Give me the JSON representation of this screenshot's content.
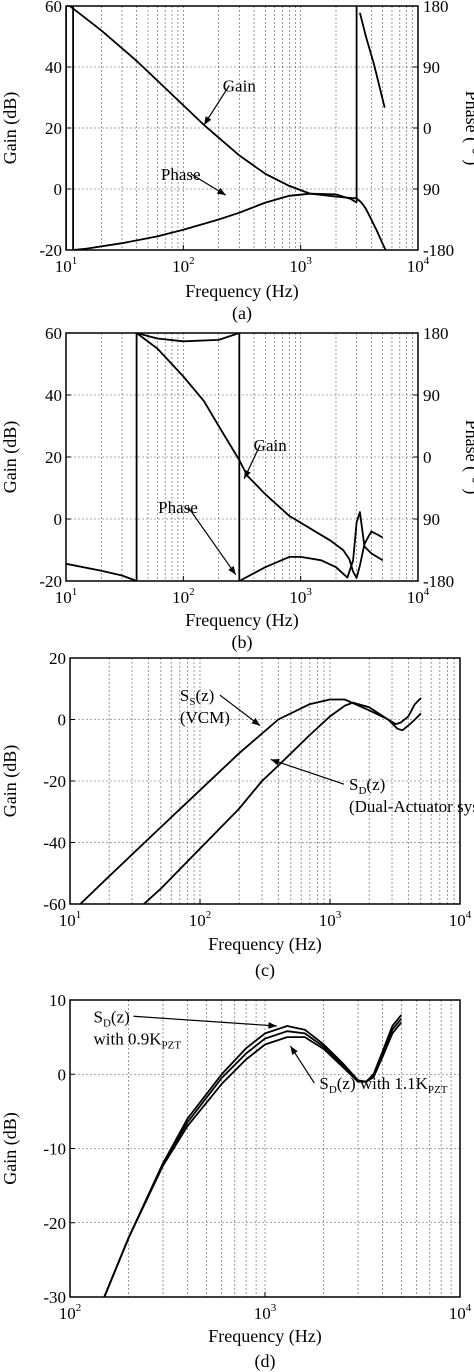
{
  "chart_data": [
    {
      "type": "line",
      "caption": "(a)",
      "xlabel": "Frequency (Hz)",
      "ylabel": "Gain (dB)",
      "y2label": "Phase ( ° )",
      "xscale": "log",
      "xlim": [
        10,
        10000
      ],
      "ylim": [
        -20,
        60
      ],
      "y2lim": [
        -180,
        180
      ],
      "grid": true,
      "x_ticks": [
        {
          "v": 10,
          "base": "10",
          "exp": "1"
        },
        {
          "v": 100,
          "base": "10",
          "exp": "2"
        },
        {
          "v": 1000,
          "base": "10",
          "exp": "3"
        },
        {
          "v": 10000,
          "base": "10",
          "exp": "4"
        }
      ],
      "y_ticks": [
        60,
        40,
        20,
        0,
        -20
      ],
      "y2_ticks": [
        {
          "v": 180,
          "label": "180"
        },
        {
          "v": 90,
          "label": "90"
        },
        {
          "v": 0,
          "label": "0"
        },
        {
          "v": -90,
          "label": "90"
        },
        {
          "v": -180,
          "label": "-180"
        }
      ],
      "annotations": [
        {
          "text": "Gain",
          "x": 300,
          "y": 32,
          "ax": 150,
          "ay": 21
        },
        {
          "text": "Phase",
          "x": 95,
          "y": 3,
          "ax": 230,
          "ay": -2
        }
      ],
      "series": [
        {
          "axis": "left",
          "x": [
            10,
            20,
            40,
            80,
            150,
            300,
            500,
            800,
            1200,
            2000,
            2800,
            3000
          ],
          "y": [
            61,
            52,
            42,
            31,
            21,
            11,
            5,
            1,
            -1.5,
            -2.5,
            -3,
            -3
          ]
        },
        {
          "axis": "left",
          "x": [
            3000,
            3300,
            3600,
            4000,
            4500,
            5000,
            5300
          ],
          "y": [
            -3,
            -4.5,
            -6.5,
            -10,
            -14,
            -18,
            -20
          ]
        },
        {
          "axis": "right",
          "x": [
            10,
            10,
            10,
            11.5,
            11.5
          ],
          "y": [
            -180,
            180,
            180,
            180,
            -180
          ]
        },
        {
          "axis": "right",
          "x": [
            11.5,
            15,
            30,
            60,
            100,
            200,
            300,
            500,
            800,
            1200,
            2000,
            2700,
            3000
          ],
          "y": [
            -180,
            -178,
            -170,
            -160,
            -150,
            -135,
            -125,
            -110,
            -100,
            -97,
            -98,
            -105,
            -110
          ]
        },
        {
          "axis": "right",
          "x": [
            3000,
            3000
          ],
          "y": [
            -110,
            180
          ]
        },
        {
          "axis": "right",
          "x": [
            3200,
            3600,
            4200,
            5200
          ],
          "y": [
            170,
            135,
            95,
            30
          ]
        }
      ]
    },
    {
      "type": "line",
      "caption": "(b)",
      "xlabel": "Frequency (Hz)",
      "ylabel": "Gain (dB)",
      "y2label": "Phase ( ° )",
      "xscale": "log",
      "xlim": [
        10,
        10000
      ],
      "ylim": [
        -20,
        60
      ],
      "y2lim": [
        -180,
        180
      ],
      "grid": true,
      "x_ticks": [
        {
          "v": 10,
          "base": "10",
          "exp": "1"
        },
        {
          "v": 100,
          "base": "10",
          "exp": "2"
        },
        {
          "v": 1000,
          "base": "10",
          "exp": "3"
        },
        {
          "v": 10000,
          "base": "10",
          "exp": "4"
        }
      ],
      "y_ticks": [
        60,
        40,
        20,
        0,
        -20
      ],
      "y2_ticks": [
        {
          "v": 180,
          "label": "180"
        },
        {
          "v": 90,
          "label": "90"
        },
        {
          "v": 0,
          "label": "0"
        },
        {
          "v": -90,
          "label": "90"
        },
        {
          "v": -180,
          "label": "-180"
        }
      ],
      "annotations": [
        {
          "text": "Gain",
          "x": 550,
          "y": 22,
          "ax": 330,
          "ay": 13
        },
        {
          "text": "Phase",
          "x": 90,
          "y": 2,
          "ax": 280,
          "ay": -18
        }
      ],
      "series": [
        {
          "axis": "left",
          "x": [
            40,
            60,
            100,
            150,
            200,
            300,
            350,
            500,
            800,
            1200,
            1800,
            2300,
            2600,
            2800,
            3000,
            3200,
            3500,
            4000,
            4500,
            5000
          ],
          "y": [
            60,
            55,
            46,
            38,
            30,
            19,
            14,
            8,
            1,
            -3,
            -7,
            -10,
            -13,
            -17,
            -19,
            -15,
            -8,
            -4,
            -5,
            -6
          ]
        },
        {
          "axis": "right",
          "x": [
            10,
            20,
            30,
            40
          ],
          "y": [
            -155,
            -165,
            -172,
            -180
          ]
        },
        {
          "axis": "right",
          "x": [
            40,
            40
          ],
          "y": [
            -180,
            180
          ]
        },
        {
          "axis": "right",
          "x": [
            40,
            60,
            100,
            200,
            300
          ],
          "y": [
            180,
            172,
            168,
            170,
            180
          ]
        },
        {
          "axis": "right",
          "x": [
            300,
            300
          ],
          "y": [
            180,
            -180
          ]
        },
        {
          "axis": "right",
          "x": [
            300,
            500,
            800,
            1000,
            1500,
            2000,
            2500,
            2800,
            3000,
            3200,
            3500,
            4000,
            5000
          ],
          "y": [
            -180,
            -160,
            -145,
            -145,
            -150,
            -160,
            -175,
            -150,
            -95,
            -80,
            -130,
            -140,
            -150
          ]
        }
      ]
    },
    {
      "type": "line",
      "caption": "(c)",
      "xlabel": "Frequency (Hz)",
      "ylabel": "Gain (dB)",
      "xscale": "log",
      "xlim": [
        10,
        10000
      ],
      "ylim": [
        -60,
        20
      ],
      "grid": true,
      "x_ticks": [
        {
          "v": 10,
          "base": "10",
          "exp": "1"
        },
        {
          "v": 100,
          "base": "10",
          "exp": "2"
        },
        {
          "v": 1000,
          "base": "10",
          "exp": "3"
        },
        {
          "v": 10000,
          "base": "10",
          "exp": "4"
        }
      ],
      "y_ticks": [
        20,
        0,
        -20,
        -40,
        -60
      ],
      "annotations": [
        {
          "base": "S",
          "sub": "S",
          "suffix": "(z)",
          "line2": "(VCM)",
          "x": 70,
          "y": 6,
          "ax": 290,
          "ay": -2
        },
        {
          "base": "S",
          "sub": "D",
          "suffix": "(z)",
          "line2": "(Dual-Actuator system)",
          "x": 1400,
          "y": -23,
          "ax": 350,
          "ay": -13
        }
      ],
      "series": [
        {
          "name": "Ss(z)",
          "x": [
            12,
            20,
            50,
            100,
            200,
            400,
            700,
            1000,
            1300,
            2000,
            2800,
            3200,
            3500,
            4000,
            4500,
            5000
          ],
          "y": [
            -60,
            -51,
            -35,
            -23,
            -11,
            0,
            5,
            6.5,
            6.5,
            3,
            0,
            -1.5,
            -1,
            1,
            5,
            7
          ]
        },
        {
          "name": "SD(z)",
          "x": [
            37,
            50,
            100,
            200,
            300,
            400,
            700,
            1000,
            1300,
            1500,
            2000,
            2800,
            3300,
            3600,
            4000,
            4500,
            5000
          ],
          "y": [
            -60,
            -55,
            -42,
            -29,
            -20,
            -15,
            -5,
            1,
            4.5,
            5.5,
            4,
            0,
            -3,
            -3.5,
            -2,
            0,
            2
          ]
        }
      ]
    },
    {
      "type": "line",
      "caption": "(d)",
      "xlabel": "Frequency (Hz)",
      "ylabel": "Gain (dB)",
      "xscale": "log",
      "xlim": [
        100,
        10000
      ],
      "ylim": [
        -30,
        10
      ],
      "grid": true,
      "x_ticks": [
        {
          "v": 100,
          "base": "10",
          "exp": "2"
        },
        {
          "v": 1000,
          "base": "10",
          "exp": "3"
        },
        {
          "v": 10000,
          "base": "10",
          "exp": "4"
        }
      ],
      "y_ticks": [
        10,
        0,
        -10,
        -20,
        -30
      ],
      "annotations": [
        {
          "base": "S",
          "sub": "D",
          "suffix": "(z)",
          "line2_base": "with 0.9K",
          "line2_sub": "PZT",
          "x": 132,
          "y": 7,
          "ax": 1150,
          "ay": 6.5
        },
        {
          "base": "S",
          "sub": "D",
          "suffix": "(z) with 1.1K",
          "sub2": "PZT",
          "x": 1900,
          "y": -2,
          "ax": 1350,
          "ay": 3.8
        }
      ],
      "series": [
        {
          "name": "SD(z) with 0.9KPZT",
          "x": [
            150,
            200,
            300,
            400,
            600,
            800,
            1000,
            1300,
            1600,
            2000,
            2500,
            3000,
            3300,
            3600,
            4000,
            4500,
            5000
          ],
          "y": [
            -30,
            -22,
            -12,
            -6,
            0,
            3.5,
            5.5,
            6.5,
            6,
            4,
            1.5,
            -0.8,
            -1,
            0,
            3,
            6.5,
            8
          ]
        },
        {
          "name": "SD(z)",
          "x": [
            150,
            200,
            300,
            400,
            600,
            800,
            1000,
            1300,
            1600,
            2000,
            2500,
            3000,
            3300,
            3600,
            4000,
            4500,
            5000
          ],
          "y": [
            -30,
            -22,
            -12,
            -6.5,
            -0.5,
            2.8,
            4.8,
            5.8,
            5.5,
            3.7,
            1.2,
            -0.9,
            -1,
            -0.2,
            2.6,
            6,
            7.5
          ]
        },
        {
          "name": "SD(z) with 1.1KPZT",
          "x": [
            150,
            200,
            300,
            400,
            600,
            800,
            1000,
            1300,
            1600,
            2000,
            2500,
            3000,
            3300,
            3600,
            4000,
            4500,
            5000
          ],
          "y": [
            -30,
            -22,
            -12.3,
            -7,
            -1.3,
            2,
            4,
            5,
            5,
            3.4,
            1,
            -1,
            -1,
            -0.4,
            2.3,
            5.5,
            7
          ]
        }
      ]
    }
  ]
}
